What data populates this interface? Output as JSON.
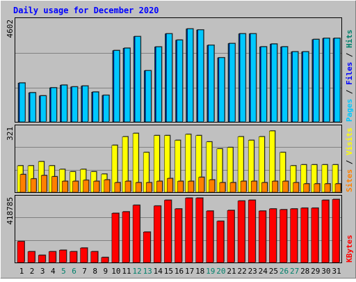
{
  "chart_data": [
    {
      "type": "bar",
      "title": "Daily usage for December 2020",
      "categories": [
        "1",
        "2",
        "3",
        "4",
        "5",
        "6",
        "7",
        "8",
        "9",
        "10",
        "11",
        "12",
        "13",
        "14",
        "15",
        "16",
        "17",
        "18",
        "19",
        "20",
        "21",
        "22",
        "23",
        "24",
        "25",
        "26",
        "27",
        "28",
        "29",
        "30",
        "31"
      ],
      "weekend_days": [
        "5",
        "6",
        "12",
        "13",
        "19",
        "20",
        "26",
        "27"
      ],
      "y_tick_label": "4602",
      "ylim": [
        0,
        4602
      ],
      "legend": [
        "Pages",
        "Files",
        "Hits"
      ],
      "series": [
        {
          "name": "Hits",
          "color": "#00806b",
          "values": [
            1795,
            1346,
            1201,
            1575,
            1697,
            1616,
            1657,
            1377,
            1227,
            3297,
            3406,
            3947,
            2367,
            3466,
            4075,
            3779,
            4300,
            4253,
            3544,
            2965,
            3625,
            4075,
            4075,
            3470,
            3600,
            3470,
            3240,
            3240,
            3810,
            3865,
            3865
          ]
        },
        {
          "name": "Files",
          "color": "#0000ff",
          "values": [
            1795,
            1346,
            1201,
            1575,
            1697,
            1616,
            1657,
            1377,
            1227,
            3297,
            3406,
            3947,
            2367,
            3466,
            4075,
            3779,
            4300,
            4253,
            3544,
            2965,
            3625,
            4075,
            4075,
            3470,
            3600,
            3470,
            3240,
            3240,
            3810,
            3865,
            3865
          ]
        },
        {
          "name": "Pages",
          "color": "#00c8ff",
          "values": [
            1795,
            1346,
            1201,
            1575,
            1697,
            1616,
            1657,
            1377,
            1227,
            3297,
            3406,
            3947,
            2367,
            3466,
            4075,
            3779,
            4300,
            4253,
            3544,
            2965,
            3625,
            4075,
            4075,
            3470,
            3600,
            3470,
            3240,
            3240,
            3810,
            3865,
            3865
          ]
        }
      ]
    },
    {
      "type": "bar",
      "categories": [
        "1",
        "2",
        "3",
        "4",
        "5",
        "6",
        "7",
        "8",
        "9",
        "10",
        "11",
        "12",
        "13",
        "14",
        "15",
        "16",
        "17",
        "18",
        "19",
        "20",
        "21",
        "22",
        "23",
        "24",
        "25",
        "26",
        "27",
        "28",
        "29",
        "30",
        "31"
      ],
      "y_tick_label": "321",
      "ylim": [
        0,
        321
      ],
      "legend": [
        "Sites",
        "Visits"
      ],
      "series": [
        {
          "name": "Visits",
          "color": "#ffff00",
          "values": [
            133,
            133,
            154,
            133,
            115,
            103,
            115,
            103,
            91,
            236,
            279,
            296,
            200,
            285,
            285,
            261,
            291,
            285,
            253,
            218,
            225,
            279,
            261,
            279,
            308,
            200,
            133,
            138,
            138,
            138,
            138
          ]
        },
        {
          "name": "Sites",
          "color": "#ff8000",
          "values": [
            89,
            67,
            84,
            78,
            55,
            55,
            60,
            55,
            62,
            48,
            55,
            48,
            48,
            55,
            69,
            55,
            55,
            75,
            62,
            48,
            48,
            55,
            55,
            48,
            55,
            55,
            48,
            42,
            42,
            42,
            42
          ]
        }
      ]
    },
    {
      "type": "bar",
      "categories": [
        "1",
        "2",
        "3",
        "4",
        "5",
        "6",
        "7",
        "8",
        "9",
        "10",
        "11",
        "12",
        "13",
        "14",
        "15",
        "16",
        "17",
        "18",
        "19",
        "20",
        "21",
        "22",
        "23",
        "24",
        "25",
        "26",
        "27",
        "28",
        "29",
        "30",
        "31"
      ],
      "y_tick_label": "418785",
      "ylim": [
        0,
        418785
      ],
      "legend": [
        "KBytes"
      ],
      "series": [
        {
          "name": "KBytes",
          "color": "#ff0000",
          "values": [
            138000,
            71400,
            47600,
            71400,
            80900,
            71400,
            95200,
            71400,
            33300,
            323000,
            333000,
            376000,
            200000,
            371000,
            409000,
            352000,
            423000,
            423000,
            338000,
            271000,
            342000,
            404000,
            409000,
            338000,
            352000,
            347000,
            352000,
            357000,
            357000,
            409000,
            414000
          ]
        }
      ]
    }
  ],
  "colors": {
    "background": "#c0c0c0",
    "title": "#0000ff",
    "axis_number": "#000000",
    "weekday_label": "#000000",
    "weekend_label": "#00806b",
    "divider": "#000000"
  }
}
